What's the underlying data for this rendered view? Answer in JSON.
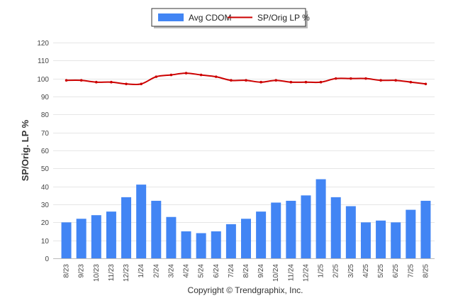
{
  "chart_data": {
    "type": "bar",
    "categories": [
      "8/23",
      "9/23",
      "10/23",
      "11/23",
      "12/23",
      "1/24",
      "2/24",
      "3/24",
      "4/24",
      "5/24",
      "6/24",
      "7/24",
      "8/24",
      "9/24",
      "10/24",
      "11/24",
      "12/24",
      "1/25",
      "2/25",
      "3/25",
      "4/25",
      "5/25",
      "6/25",
      "7/25",
      "8/25"
    ],
    "series": [
      {
        "name": "Avg CDOM",
        "kind": "bar",
        "color": "#4285f4",
        "values": [
          20,
          22,
          24,
          26,
          34,
          41,
          32,
          23,
          15,
          14,
          15,
          19,
          22,
          26,
          31,
          32,
          35,
          44,
          34,
          29,
          20,
          21,
          20,
          27,
          32
        ]
      },
      {
        "name": "SP/Orig LP %",
        "kind": "line",
        "color": "#cc0000",
        "values": [
          99,
          99,
          98,
          98,
          97,
          97,
          101,
          102,
          103,
          102,
          101,
          99,
          99,
          98,
          99,
          98,
          98,
          98,
          100,
          100,
          100,
          99,
          99,
          98,
          97
        ]
      }
    ],
    "ylabel": "SP/Orig. LP %",
    "xlabel": "",
    "ylim": [
      0,
      120
    ],
    "yticks": [
      0,
      10,
      20,
      30,
      40,
      50,
      60,
      70,
      80,
      90,
      100,
      110,
      120
    ],
    "grid": true,
    "legend_position": "top-center"
  },
  "footer": {
    "credit": "Copyright © Trendgraphix, Inc."
  }
}
